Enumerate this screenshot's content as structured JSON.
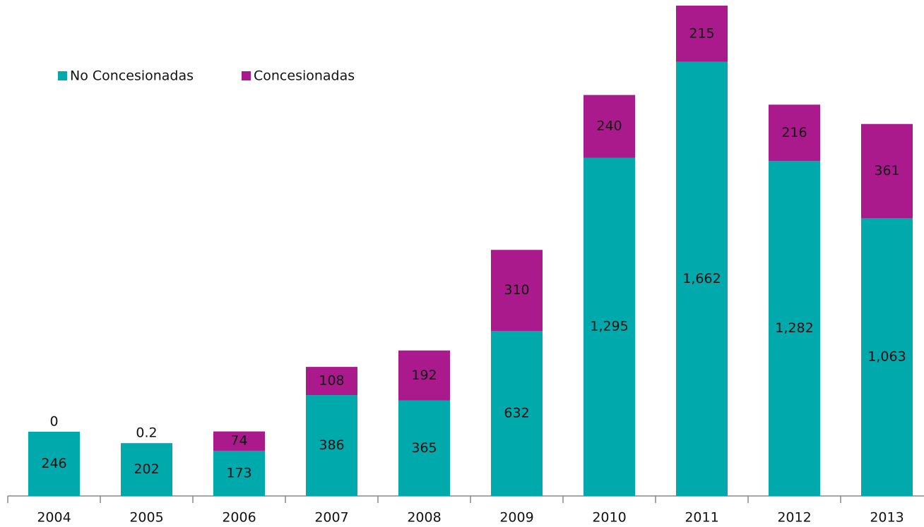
{
  "chart_data": {
    "type": "stacked-bar",
    "categories": [
      "2004",
      "2005",
      "2006",
      "2007",
      "2008",
      "2009",
      "2010",
      "2011",
      "2012",
      "2013"
    ],
    "series": [
      {
        "name": "No Concesionadas",
        "color": "#00a9ac",
        "values": [
          246,
          202,
          173,
          386,
          365,
          632,
          1295,
          1662,
          1282,
          1063
        ],
        "value_labels": [
          "246",
          "202",
          "173",
          "386",
          "365",
          "632",
          "1,295",
          "1,662",
          "1,282",
          "1,063"
        ]
      },
      {
        "name": "Concesionadas",
        "color": "#ab1a8c",
        "values": [
          0,
          0.2,
          74,
          108,
          192,
          310,
          240,
          215,
          216,
          361
        ],
        "value_labels": [
          "0",
          "0.2",
          "74",
          "108",
          "192",
          "310",
          "240",
          "215",
          "216",
          "361"
        ]
      }
    ],
    "legend": "top-left"
  }
}
